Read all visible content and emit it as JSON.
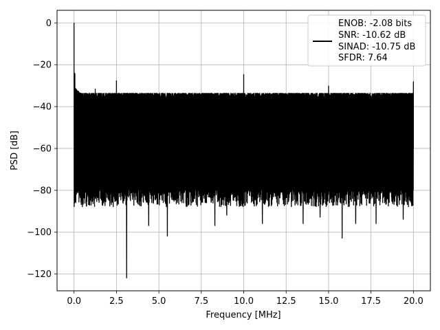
{
  "chart_data": {
    "type": "line",
    "title": "",
    "xlabel": "Frequency [MHz]",
    "ylabel": "PSD [dB]",
    "xlim": [
      -1.0,
      21.0
    ],
    "ylim": [
      -128,
      6
    ],
    "xticks": [
      0.0,
      2.5,
      5.0,
      7.5,
      10.0,
      12.5,
      15.0,
      17.5,
      20.0
    ],
    "xtick_labels": [
      "0.0",
      "2.5",
      "5.0",
      "7.5",
      "10.0",
      "12.5",
      "15.0",
      "17.5",
      "20.0"
    ],
    "yticks": [
      0,
      -20,
      -40,
      -60,
      -80,
      -100,
      -120
    ],
    "ytick_labels": [
      "0",
      "−20",
      "−40",
      "−60",
      "−80",
      "−100",
      "−120"
    ],
    "grid": true,
    "legend_position": "top-right",
    "series": [
      {
        "color": "#000000",
        "x_range": [
          0.0,
          20.0
        ],
        "noise_floor_upper_db": -36,
        "noise_floor_lower_db": -80,
        "noise_min_db": -88,
        "peaks": [
          {
            "x": 0.0,
            "y": 0.0
          },
          {
            "x": 0.05,
            "y": -24
          },
          {
            "x": 1.25,
            "y": -31.5
          },
          {
            "x": 2.5,
            "y": -27.5
          },
          {
            "x": 10.0,
            "y": -24.5
          },
          {
            "x": 15.0,
            "y": -30
          },
          {
            "x": 20.0,
            "y": -28
          }
        ],
        "dips": [
          {
            "x": 0.1,
            "y": -84
          },
          {
            "x": 1.3,
            "y": -83
          },
          {
            "x": 2.2,
            "y": -87
          },
          {
            "x": 3.1,
            "y": -122
          },
          {
            "x": 4.4,
            "y": -97
          },
          {
            "x": 5.5,
            "y": -102
          },
          {
            "x": 8.3,
            "y": -97
          },
          {
            "x": 9.0,
            "y": -92
          },
          {
            "x": 11.1,
            "y": -96
          },
          {
            "x": 13.5,
            "y": -96
          },
          {
            "x": 14.5,
            "y": -93
          },
          {
            "x": 15.8,
            "y": -103
          },
          {
            "x": 16.6,
            "y": -96
          },
          {
            "x": 17.8,
            "y": -96
          },
          {
            "x": 19.4,
            "y": -94
          }
        ]
      }
    ],
    "legend": {
      "line_color": "#000000",
      "entries": [
        "ENOB: -2.08 bits",
        "SNR: -10.62 dB",
        "SINAD: -10.75 dB",
        "SFDR: 7.64"
      ]
    }
  }
}
